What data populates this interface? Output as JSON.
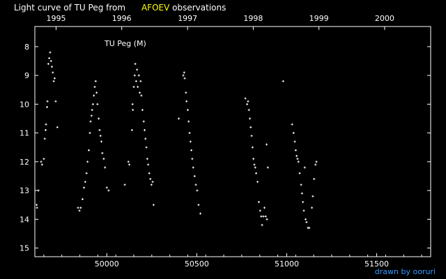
{
  "title": {
    "prefix": "Light curve of TU Peg from",
    "source": "AFOEV",
    "suffix": "observations"
  },
  "credit": "drawn by ooruri",
  "colors": {
    "background": "#000000",
    "axes": "#ffffff",
    "points": "#ffffff",
    "source_highlight": "#ffff00",
    "credit": "#3399ff"
  },
  "chart_data": {
    "type": "scatter",
    "legend": "TU Peg (M)",
    "xlim": [
      49600,
      51800
    ],
    "ylim": [
      15.3,
      7.3
    ],
    "y_inverted": true,
    "x_ticks_bottom": [
      50000,
      50500,
      51000,
      51500
    ],
    "x_ticks_top": [
      {
        "label": "1995",
        "jd": 49718
      },
      {
        "label": "1996",
        "jd": 50083
      },
      {
        "label": "1997",
        "jd": 50449
      },
      {
        "label": "1998",
        "jd": 50814
      },
      {
        "label": "1999",
        "jd": 51179
      },
      {
        "label": "2000",
        "jd": 51544
      }
    ],
    "y_ticks": [
      8,
      9,
      10,
      11,
      12,
      13,
      14,
      15
    ],
    "points": [
      [
        49610,
        13.5
      ],
      [
        49612,
        13.6
      ],
      [
        49620,
        13.0
      ],
      [
        49635,
        12.0
      ],
      [
        49640,
        12.1
      ],
      [
        49650,
        11.9
      ],
      [
        49655,
        11.2
      ],
      [
        49660,
        10.9
      ],
      [
        49662,
        10.7
      ],
      [
        49668,
        10.1
      ],
      [
        49670,
        9.9
      ],
      [
        49675,
        8.6
      ],
      [
        49680,
        8.4
      ],
      [
        49685,
        8.2
      ],
      [
        49690,
        8.5
      ],
      [
        49695,
        8.7
      ],
      [
        49700,
        8.9
      ],
      [
        49705,
        9.2
      ],
      [
        49710,
        9.1
      ],
      [
        49716,
        9.9
      ],
      [
        49725,
        10.8
      ],
      [
        49840,
        13.6
      ],
      [
        49848,
        13.7
      ],
      [
        49855,
        13.6
      ],
      [
        49865,
        13.3
      ],
      [
        49873,
        12.9
      ],
      [
        49880,
        12.7
      ],
      [
        49887,
        12.4
      ],
      [
        49893,
        12.0
      ],
      [
        49900,
        11.6
      ],
      [
        49906,
        11.0
      ],
      [
        49910,
        10.6
      ],
      [
        49915,
        10.4
      ],
      [
        49918,
        10.2
      ],
      [
        49923,
        10.0
      ],
      [
        49928,
        9.7
      ],
      [
        49933,
        9.4
      ],
      [
        49938,
        9.2
      ],
      [
        49943,
        9.6
      ],
      [
        49948,
        10.0
      ],
      [
        49955,
        10.5
      ],
      [
        49960,
        10.9
      ],
      [
        49965,
        11.1
      ],
      [
        49970,
        11.3
      ],
      [
        49975,
        11.7
      ],
      [
        49983,
        11.9
      ],
      [
        49990,
        12.2
      ],
      [
        50000,
        12.9
      ],
      [
        50010,
        13.0
      ],
      [
        50100,
        12.8
      ],
      [
        50120,
        12.0
      ],
      [
        50125,
        12.1
      ],
      [
        50140,
        10.9
      ],
      [
        50143,
        10.0
      ],
      [
        50145,
        10.2
      ],
      [
        50150,
        9.4
      ],
      [
        50155,
        9.0
      ],
      [
        50158,
        8.6
      ],
      [
        50163,
        9.2
      ],
      [
        50168,
        8.8
      ],
      [
        50172,
        9.4
      ],
      [
        50178,
        9.0
      ],
      [
        50183,
        9.6
      ],
      [
        50188,
        9.2
      ],
      [
        50192,
        9.7
      ],
      [
        50198,
        10.2
      ],
      [
        50205,
        10.6
      ],
      [
        50210,
        10.9
      ],
      [
        50215,
        11.2
      ],
      [
        50220,
        11.5
      ],
      [
        50225,
        11.9
      ],
      [
        50230,
        12.1
      ],
      [
        50236,
        12.4
      ],
      [
        50242,
        12.6
      ],
      [
        50248,
        12.8
      ],
      [
        50255,
        12.7
      ],
      [
        50260,
        13.5
      ],
      [
        50400,
        10.5
      ],
      [
        50425,
        9.0
      ],
      [
        50430,
        8.9
      ],
      [
        50433,
        9.1
      ],
      [
        50440,
        9.6
      ],
      [
        50443,
        9.9
      ],
      [
        50450,
        10.2
      ],
      [
        50455,
        10.6
      ],
      [
        50460,
        11.0
      ],
      [
        50465,
        11.3
      ],
      [
        50470,
        11.6
      ],
      [
        50475,
        11.9
      ],
      [
        50480,
        12.2
      ],
      [
        50488,
        12.5
      ],
      [
        50495,
        12.8
      ],
      [
        50502,
        13.0
      ],
      [
        50510,
        13.5
      ],
      [
        50520,
        13.8
      ],
      [
        50770,
        9.8
      ],
      [
        50780,
        10.0
      ],
      [
        50785,
        9.9
      ],
      [
        50790,
        10.2
      ],
      [
        50795,
        10.5
      ],
      [
        50800,
        10.8
      ],
      [
        50805,
        11.1
      ],
      [
        50810,
        11.5
      ],
      [
        50815,
        11.9
      ],
      [
        50820,
        12.1
      ],
      [
        50825,
        12.2
      ],
      [
        50830,
        12.4
      ],
      [
        50838,
        12.7
      ],
      [
        50845,
        13.4
      ],
      [
        50852,
        13.7
      ],
      [
        50858,
        13.9
      ],
      [
        50863,
        14.2
      ],
      [
        50870,
        13.9
      ],
      [
        50876,
        13.6
      ],
      [
        50883,
        13.9
      ],
      [
        50890,
        14.0
      ],
      [
        50888,
        11.4
      ],
      [
        50895,
        12.2
      ],
      [
        50980,
        9.2
      ],
      [
        51030,
        10.7
      ],
      [
        51038,
        11.0
      ],
      [
        51045,
        11.3
      ],
      [
        51050,
        11.6
      ],
      [
        51055,
        11.8
      ],
      [
        51060,
        11.9
      ],
      [
        51065,
        12.0
      ],
      [
        51072,
        12.4
      ],
      [
        51080,
        12.8
      ],
      [
        51085,
        13.1
      ],
      [
        51090,
        13.4
      ],
      [
        51095,
        13.7
      ],
      [
        51100,
        12.2
      ],
      [
        51105,
        14.0
      ],
      [
        51110,
        14.1
      ],
      [
        51118,
        14.3
      ],
      [
        51125,
        14.3
      ],
      [
        51140,
        13.6
      ],
      [
        51145,
        13.2
      ],
      [
        51152,
        12.6
      ],
      [
        51160,
        12.1
      ],
      [
        51165,
        12.0
      ]
    ]
  }
}
